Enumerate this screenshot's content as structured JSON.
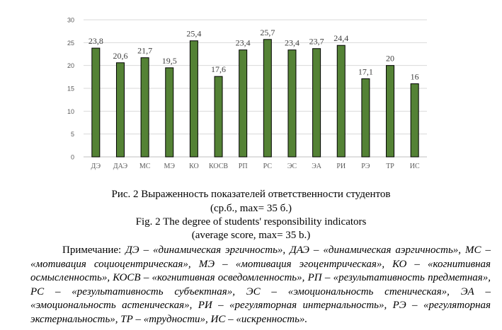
{
  "chart_data": {
    "type": "bar",
    "categories": [
      "ДЭ",
      "ДАЭ",
      "МС",
      "МЭ",
      "КО",
      "КОСВ",
      "РП",
      "РС",
      "ЭС",
      "ЭА",
      "РИ",
      "РЭ",
      "ТР",
      "ИС"
    ],
    "values": [
      23.8,
      20.6,
      21.7,
      19.5,
      25.4,
      17.6,
      23.4,
      25.7,
      23.4,
      23.7,
      24.4,
      17.1,
      20,
      16
    ],
    "data_labels": [
      "23,8",
      "20,6",
      "21,7",
      "19,5",
      "25,4",
      "17,6",
      "23,4",
      "25,7",
      "23,4",
      "23,7",
      "24,4",
      "17,1",
      "20",
      "16"
    ],
    "yticks": [
      "0",
      "5",
      "10",
      "15",
      "20",
      "25",
      "30"
    ],
    "ylim": [
      0,
      30
    ],
    "grid": true,
    "bar_color": "#548235",
    "title": "",
    "xlabel": "",
    "ylabel": ""
  },
  "caption": {
    "ru_line1": "Рис. 2 Выраженность показателей ответственности студентов",
    "ru_line2": "(ср.б., max= 35 б.)",
    "en_line1": "Fig. 2 The degree of students' responsibility indicators",
    "en_line2": "(average score, max= 35 b.)"
  },
  "note": {
    "label": "Примечание: ",
    "text": "ДЭ – «динамическая эргичность», ДАЭ – «динамическая аэргичность», МС – «мотивация социоцентрическая», МЭ – «мотивация эгоцентрическая», КО – «когнитивная осмысленность», КОСВ – «когнитивная осведомленность», РП – «результативность предметная», РС – «результативность субъектная», ЭС – «эмоциональность стеническая», ЭА – «эмоциональность астеническая», РИ – «регуляторная интернальность», РЭ – «регуляторная экстернальность», ТР – «трудности», ИС – «искренность»."
  }
}
